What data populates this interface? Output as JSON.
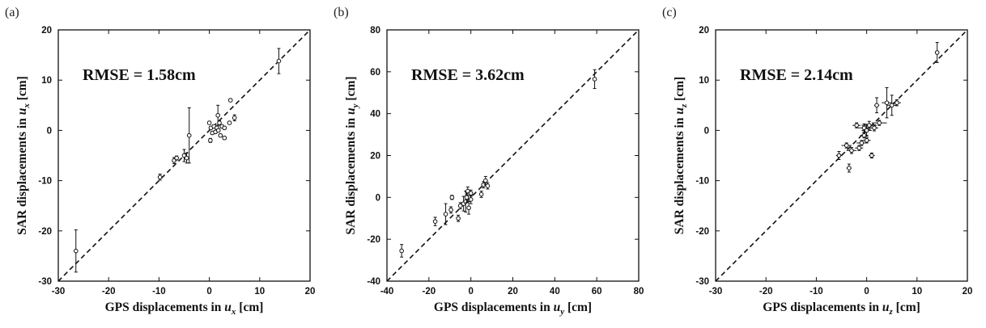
{
  "chart_data": [
    {
      "type": "scatter",
      "panel_label": "(a)",
      "annotation": "RMSE = 1.58cm",
      "xlabel_main": "GPS displacements in ",
      "xlabel_var": "u",
      "xlabel_sub": "x",
      "xlabel_unit": " [cm]",
      "ylabel_main": "SAR displacements in ",
      "ylabel_var": "u",
      "ylabel_sub": "x",
      "ylabel_unit": " [cm]",
      "xlim": [
        -30,
        20
      ],
      "ylim": [
        -30,
        20
      ],
      "xticks": [
        -30,
        -20,
        -10,
        0,
        10,
        20
      ],
      "yticks": [
        -30,
        -20,
        -10,
        0,
        10,
        20
      ],
      "reference_line": "y = x",
      "grid": false,
      "points": [
        {
          "x": -26.5,
          "y": -24.0,
          "xerr": 0.2,
          "yerr": 4.2
        },
        {
          "x": -9.8,
          "y": -9.3,
          "xerr": 0.3,
          "yerr": 0.6
        },
        {
          "x": -7.0,
          "y": -6.0,
          "xerr": 0.2,
          "yerr": 0.6
        },
        {
          "x": -6.5,
          "y": -5.5,
          "xerr": 0.2,
          "yerr": 0.4
        },
        {
          "x": -5.0,
          "y": -5.0,
          "xerr": 0.2,
          "yerr": 1.2
        },
        {
          "x": -4.5,
          "y": -5.5,
          "xerr": 0.2,
          "yerr": 1.0
        },
        {
          "x": -4.0,
          "y": -1.0,
          "xerr": 0.2,
          "yerr": 5.5
        },
        {
          "x": 0.2,
          "y": -2.0,
          "xerr": 0.2,
          "yerr": 0.4
        },
        {
          "x": 0.0,
          "y": 1.5,
          "xerr": 0.2,
          "yerr": 0.3
        },
        {
          "x": 0.3,
          "y": 0.5,
          "xerr": 0.2,
          "yerr": 0.3
        },
        {
          "x": 0.6,
          "y": -0.5,
          "xerr": 0.2,
          "yerr": 0.3
        },
        {
          "x": 0.9,
          "y": 0.8,
          "xerr": 0.2,
          "yerr": 0.3
        },
        {
          "x": 1.2,
          "y": -0.3,
          "xerr": 0.2,
          "yerr": 0.3
        },
        {
          "x": 1.5,
          "y": 0.5,
          "xerr": 0.2,
          "yerr": 0.3
        },
        {
          "x": 1.8,
          "y": 0.0,
          "xerr": 0.2,
          "yerr": 0.3
        },
        {
          "x": 1.7,
          "y": 3.0,
          "xerr": 0.2,
          "yerr": 2.0
        },
        {
          "x": 2.0,
          "y": 1.5,
          "xerr": 0.2,
          "yerr": 0.4
        },
        {
          "x": 2.2,
          "y": -1.0,
          "xerr": 0.2,
          "yerr": 0.3
        },
        {
          "x": 2.5,
          "y": 0.8,
          "xerr": 0.2,
          "yerr": 0.3
        },
        {
          "x": 3.0,
          "y": 0.5,
          "xerr": 0.2,
          "yerr": 0.3
        },
        {
          "x": 3.0,
          "y": -1.5,
          "xerr": 0.2,
          "yerr": 0.3
        },
        {
          "x": 4.0,
          "y": 1.5,
          "xerr": 0.2,
          "yerr": 0.3
        },
        {
          "x": 4.2,
          "y": 6.0,
          "xerr": 0.2,
          "yerr": 0.3
        },
        {
          "x": 5.0,
          "y": 2.5,
          "xerr": 0.2,
          "yerr": 0.6
        },
        {
          "x": 13.8,
          "y": 13.8,
          "xerr": 0.3,
          "yerr": 2.5
        }
      ]
    },
    {
      "type": "scatter",
      "panel_label": "(b)",
      "annotation": "RMSE = 3.62cm",
      "xlabel_main": "GPS displacements in ",
      "xlabel_var": "u",
      "xlabel_sub": "y",
      "xlabel_unit": " [cm]",
      "ylabel_main": "SAR displacements in ",
      "ylabel_var": "u",
      "ylabel_sub": "y",
      "ylabel_unit": " [cm]",
      "xlim": [
        -40,
        80
      ],
      "ylim": [
        -40,
        80
      ],
      "xticks": [
        -40,
        -20,
        0,
        20,
        40,
        60,
        80
      ],
      "yticks": [
        -40,
        -20,
        0,
        20,
        40,
        60,
        80
      ],
      "reference_line": "y = x",
      "grid": false,
      "points": [
        {
          "x": -33.0,
          "y": -25.5,
          "xerr": 0.3,
          "yerr": 3.0
        },
        {
          "x": -17.0,
          "y": -11.5,
          "xerr": 0.5,
          "yerr": 2.0
        },
        {
          "x": -12.0,
          "y": -8.0,
          "xerr": 0.5,
          "yerr": 5.0
        },
        {
          "x": -9.5,
          "y": -6.0,
          "xerr": 0.5,
          "yerr": 1.5
        },
        {
          "x": -9.0,
          "y": 0.0,
          "xerr": 0.5,
          "yerr": 1.0
        },
        {
          "x": -6.0,
          "y": -10.0,
          "xerr": 0.5,
          "yerr": 1.5
        },
        {
          "x": -5.0,
          "y": -4.0,
          "xerr": 0.5,
          "yerr": 1.5
        },
        {
          "x": -3.5,
          "y": -3.0,
          "xerr": 0.5,
          "yerr": 3.5
        },
        {
          "x": -2.5,
          "y": -2.0,
          "xerr": 0.5,
          "yerr": 5.0
        },
        {
          "x": -2.0,
          "y": 0.0,
          "xerr": 0.5,
          "yerr": 2.5
        },
        {
          "x": -1.5,
          "y": 3.0,
          "xerr": 0.5,
          "yerr": 2.0
        },
        {
          "x": -1.0,
          "y": -5.0,
          "xerr": 0.5,
          "yerr": 3.0
        },
        {
          "x": 0.0,
          "y": -1.0,
          "xerr": 0.5,
          "yerr": 2.0
        },
        {
          "x": 0.0,
          "y": 2.0,
          "xerr": 0.5,
          "yerr": 1.5
        },
        {
          "x": 5.0,
          "y": 1.5,
          "xerr": 0.5,
          "yerr": 1.5
        },
        {
          "x": 6.0,
          "y": 6.0,
          "xerr": 0.5,
          "yerr": 1.5
        },
        {
          "x": 7.0,
          "y": 8.0,
          "xerr": 0.5,
          "yerr": 2.0
        },
        {
          "x": 8.0,
          "y": 5.5,
          "xerr": 0.5,
          "yerr": 1.5
        },
        {
          "x": 59.0,
          "y": 56.5,
          "xerr": 0.5,
          "yerr": 4.5
        }
      ]
    },
    {
      "type": "scatter",
      "panel_label": "(c)",
      "annotation": "RMSE = 2.14cm",
      "xlabel_main": "GPS displacements in ",
      "xlabel_var": "u",
      "xlabel_sub": "z",
      "xlabel_unit": " [cm]",
      "ylabel_main": "SAR displacements in ",
      "ylabel_var": "u",
      "ylabel_sub": "z",
      "ylabel_unit": " [cm]",
      "xlim": [
        -30,
        20
      ],
      "ylim": [
        -30,
        20
      ],
      "xticks": [
        -30,
        -20,
        -10,
        0,
        10,
        20
      ],
      "yticks": [
        -30,
        -20,
        -10,
        0,
        10,
        20
      ],
      "reference_line": "y = x",
      "grid": false,
      "points": [
        {
          "x": -5.5,
          "y": -5.0,
          "xerr": 0.6,
          "yerr": 0.8
        },
        {
          "x": -4.0,
          "y": -3.0,
          "xerr": 1.0,
          "yerr": 0.5
        },
        {
          "x": -3.5,
          "y": -7.5,
          "xerr": 0.5,
          "yerr": 0.8
        },
        {
          "x": -3.0,
          "y": -4.0,
          "xerr": 1.0,
          "yerr": 0.6
        },
        {
          "x": -2.0,
          "y": 1.0,
          "xerr": 0.8,
          "yerr": 0.5
        },
        {
          "x": -1.5,
          "y": -3.5,
          "xerr": 0.8,
          "yerr": 0.5
        },
        {
          "x": -1.0,
          "y": -2.5,
          "xerr": 1.0,
          "yerr": 0.5
        },
        {
          "x": -0.5,
          "y": 0.5,
          "xerr": 1.2,
          "yerr": 0.8
        },
        {
          "x": -0.5,
          "y": -1.0,
          "xerr": 0.8,
          "yerr": 0.5
        },
        {
          "x": 0.0,
          "y": 0.0,
          "xerr": 1.0,
          "yerr": 1.2
        },
        {
          "x": 0.0,
          "y": -2.0,
          "xerr": 0.8,
          "yerr": 0.5
        },
        {
          "x": 0.5,
          "y": 1.0,
          "xerr": 1.5,
          "yerr": 0.8
        },
        {
          "x": 1.0,
          "y": -5.0,
          "xerr": 0.6,
          "yerr": 0.5
        },
        {
          "x": 1.5,
          "y": 0.5,
          "xerr": 0.8,
          "yerr": 0.6
        },
        {
          "x": 2.5,
          "y": 1.5,
          "xerr": 1.5,
          "yerr": 0.5
        },
        {
          "x": 2.0,
          "y": 5.0,
          "xerr": 0.5,
          "yerr": 1.5
        },
        {
          "x": 4.0,
          "y": 5.5,
          "xerr": 1.0,
          "yerr": 3.0
        },
        {
          "x": 5.0,
          "y": 5.0,
          "xerr": 1.0,
          "yerr": 2.0
        },
        {
          "x": 6.0,
          "y": 5.5,
          "xerr": 0.8,
          "yerr": 0.6
        },
        {
          "x": 14.0,
          "y": 15.5,
          "xerr": 0.4,
          "yerr": 2.0
        }
      ]
    }
  ]
}
